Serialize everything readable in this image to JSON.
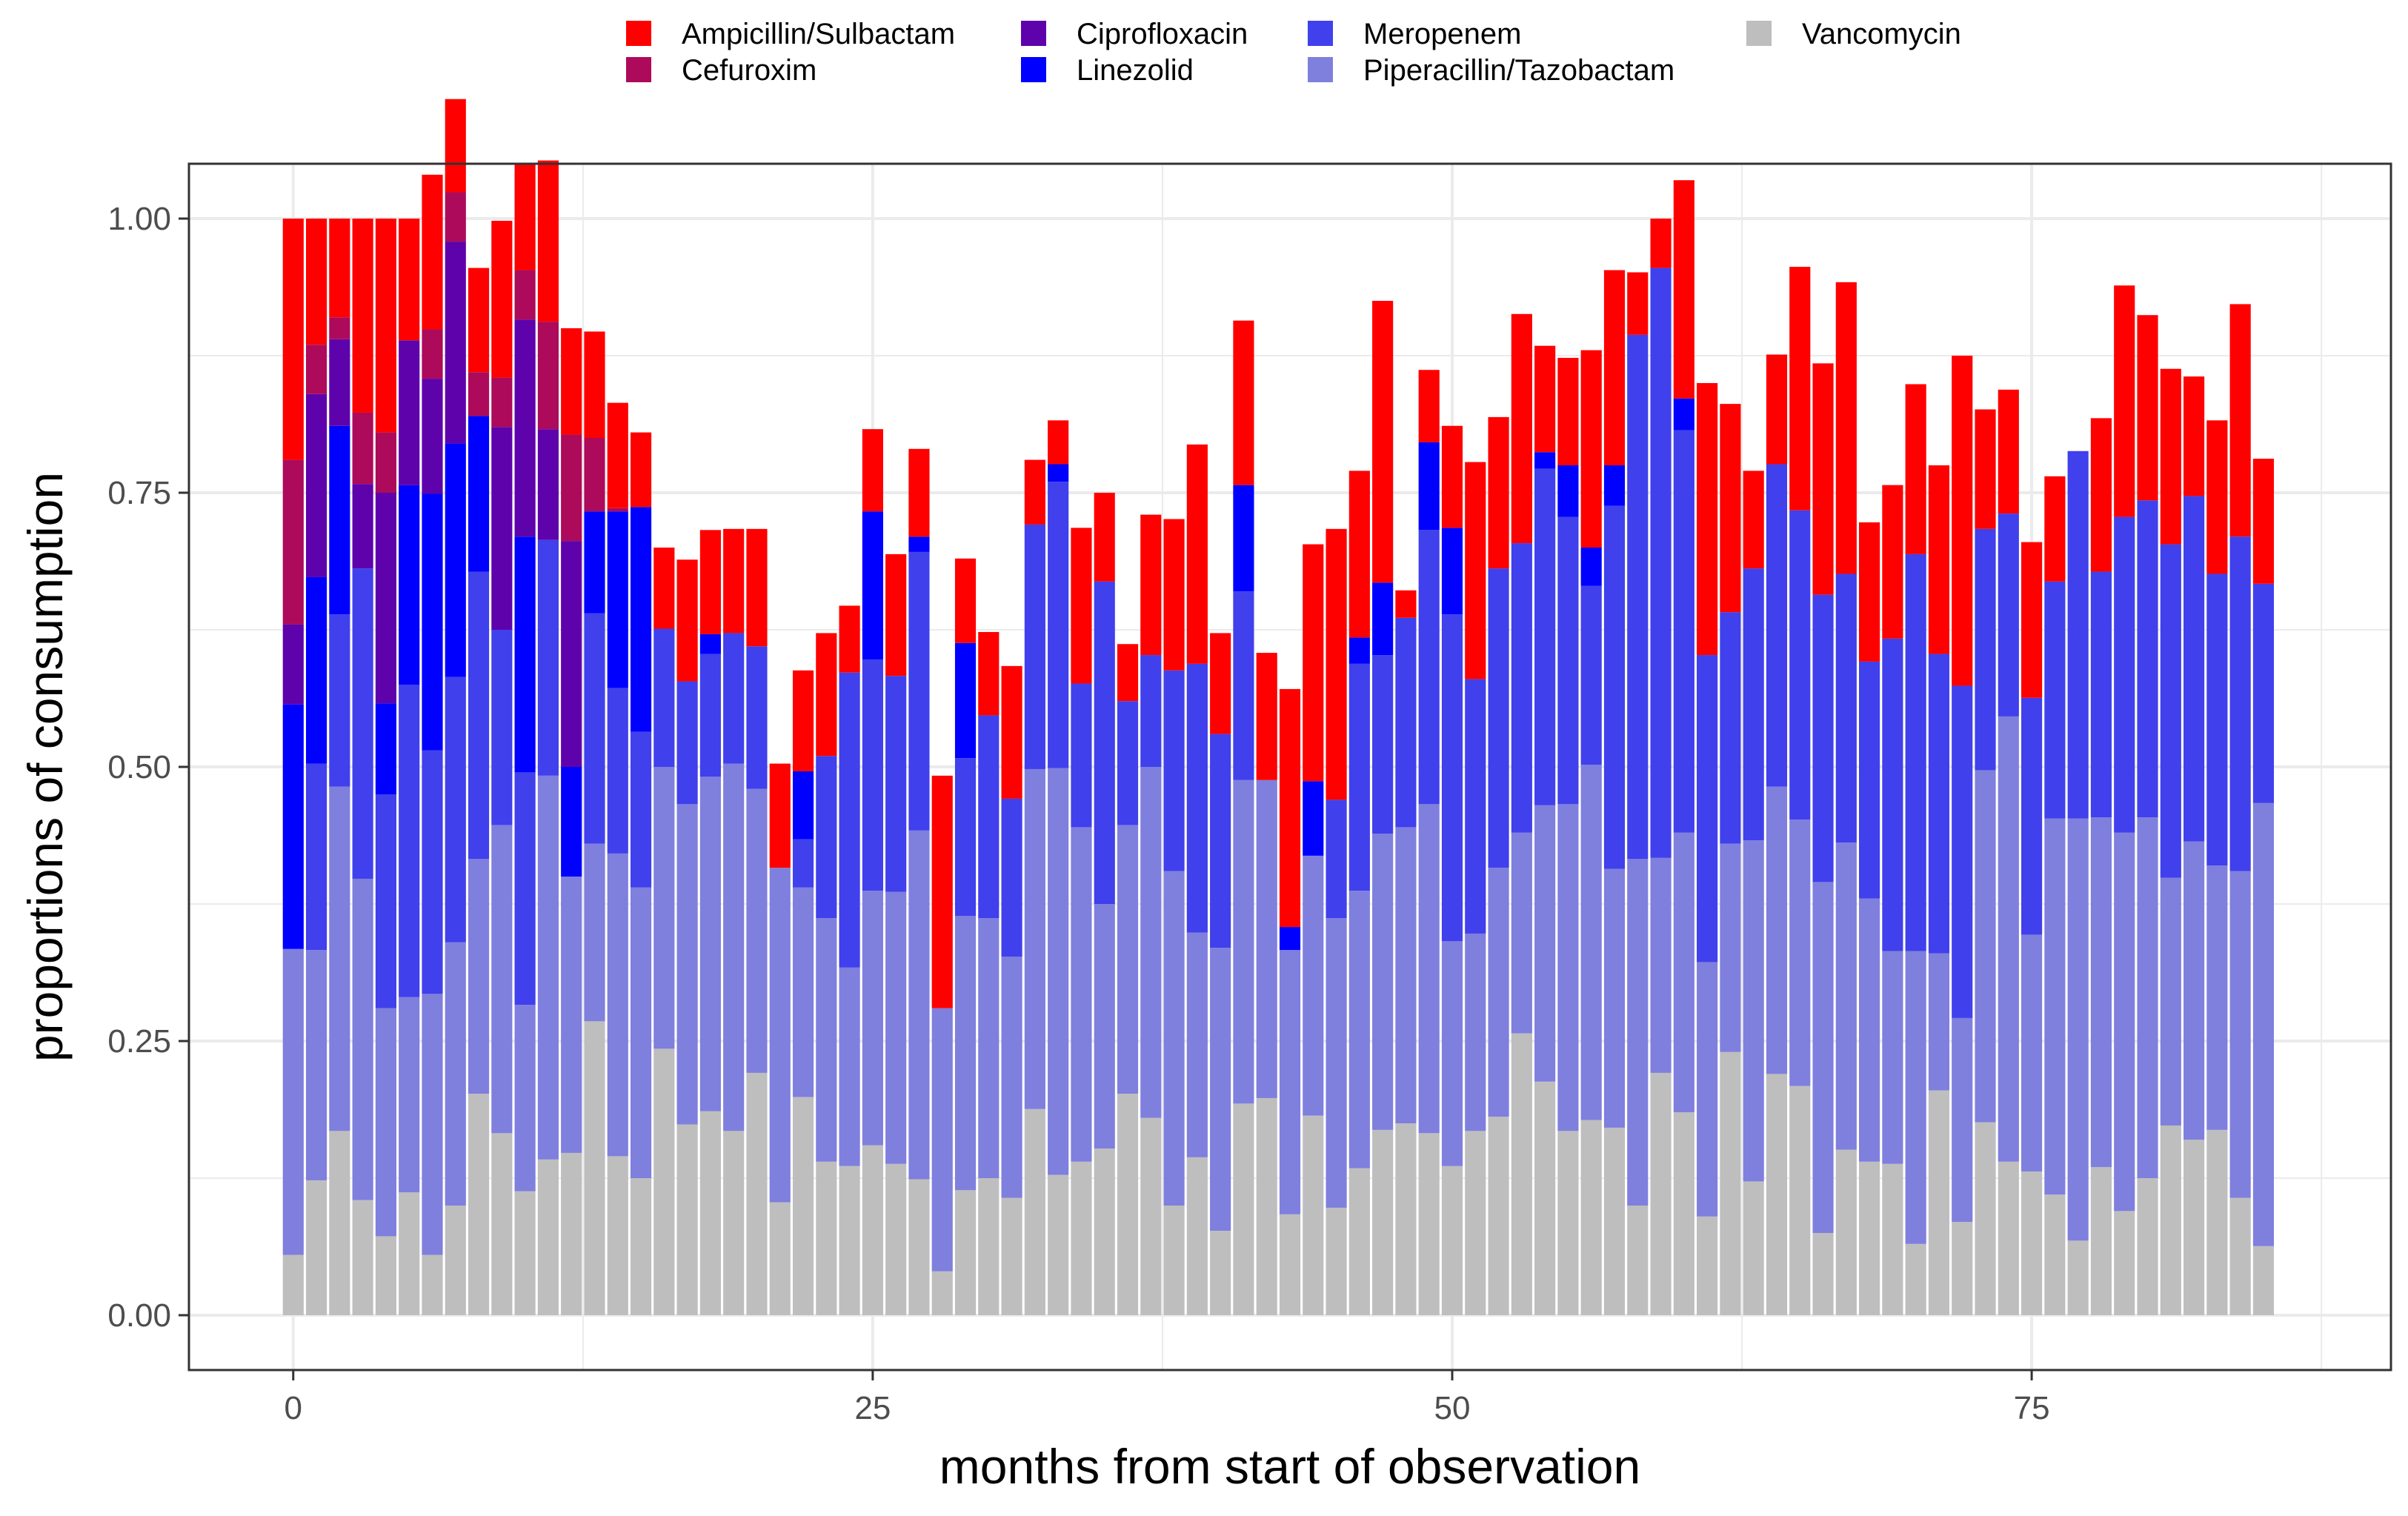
{
  "chart_data": {
    "type": "bar",
    "stacked": true,
    "xlabel": "months from start of observation",
    "ylabel": "proportions of consumption",
    "xlim": [
      -4.5,
      90.5
    ],
    "ylim": [
      -0.05,
      1.05
    ],
    "x_ticks": [
      0,
      25,
      50,
      75
    ],
    "y_ticks": [
      0,
      0.25,
      0.5,
      0.75,
      1.0
    ],
    "y_tick_labels": [
      "0.00",
      "0.25",
      "0.50",
      "0.75",
      "1.00"
    ],
    "grid": true,
    "legend_position": "top",
    "x": [
      0,
      1,
      2,
      3,
      4,
      5,
      6,
      7,
      8,
      9,
      10,
      11,
      12,
      13,
      14,
      15,
      16,
      17,
      18,
      19,
      20,
      21,
      22,
      23,
      24,
      25,
      26,
      27,
      28,
      29,
      30,
      31,
      32,
      33,
      34,
      35,
      36,
      37,
      38,
      39,
      40,
      41,
      42,
      43,
      44,
      45,
      46,
      47,
      48,
      49,
      50,
      51,
      52,
      53,
      54,
      55,
      56,
      57,
      58,
      59,
      60,
      61,
      62,
      63,
      64,
      65,
      66,
      67,
      68,
      69,
      70,
      71,
      72,
      73,
      74,
      75,
      76,
      77,
      78,
      79,
      80,
      81,
      82,
      83,
      84,
      85
    ],
    "series": [
      {
        "name": "Vancomycin",
        "color": "#BEBEBE",
        "values": [
          0.055,
          0.123,
          0.168,
          0.105,
          0.072,
          0.112,
          0.055,
          0.1,
          0.202,
          0.166,
          0.113,
          0.142,
          0.148,
          0.268,
          0.145,
          0.125,
          0.243,
          0.174,
          0.186,
          0.168,
          0.221,
          0.103,
          0.199,
          0.14,
          0.136,
          0.155,
          0.138,
          0.124,
          0.04,
          0.114,
          0.125,
          0.107,
          0.188,
          0.128,
          0.14,
          0.152,
          0.202,
          0.18,
          0.1,
          0.144,
          0.077,
          0.193,
          0.198,
          0.092,
          0.182,
          0.098,
          0.134,
          0.169,
          0.175,
          0.166,
          0.136,
          0.168,
          0.181,
          0.257,
          0.213,
          0.168,
          0.178,
          0.171,
          0.1,
          0.221,
          0.185,
          0.09,
          0.24,
          0.122,
          0.22,
          0.209,
          0.075,
          0.151,
          0.14,
          0.138,
          0.065,
          0.205,
          0.085,
          0.176,
          0.14,
          0.131,
          0.11,
          0.068,
          0.135,
          0.095,
          0.125,
          0.173,
          0.16,
          0.169,
          0.107,
          0.063
        ]
      },
      {
        "name": "Piperacillin/Tazobactam",
        "color": "#7F7FDE",
        "values": [
          0.279,
          0.21,
          0.314,
          0.293,
          0.208,
          0.178,
          0.238,
          0.24,
          0.214,
          0.281,
          0.17,
          0.35,
          0.252,
          0.162,
          0.276,
          0.265,
          0.257,
          0.292,
          0.305,
          0.335,
          0.259,
          0.305,
          0.191,
          0.222,
          0.181,
          0.232,
          0.248,
          0.318,
          0.24,
          0.25,
          0.237,
          0.22,
          0.31,
          0.371,
          0.305,
          0.223,
          0.245,
          0.32,
          0.305,
          0.205,
          0.258,
          0.295,
          0.29,
          0.241,
          0.237,
          0.264,
          0.253,
          0.27,
          0.27,
          0.3,
          0.205,
          0.18,
          0.227,
          0.183,
          0.252,
          0.298,
          0.324,
          0.236,
          0.316,
          0.196,
          0.255,
          0.232,
          0.19,
          0.311,
          0.262,
          0.243,
          0.32,
          0.28,
          0.24,
          0.194,
          0.267,
          0.125,
          0.186,
          0.321,
          0.406,
          0.216,
          0.343,
          0.385,
          0.319,
          0.345,
          0.329,
          0.226,
          0.272,
          0.241,
          0.298,
          0.404
        ]
      },
      {
        "name": "Meropenem",
        "color": "#4040EC",
        "values": [
          0.0,
          0.17,
          0.157,
          0.283,
          0.195,
          0.285,
          0.222,
          0.242,
          0.262,
          0.178,
          0.212,
          0.215,
          0.0,
          0.21,
          0.151,
          0.142,
          0.126,
          0.112,
          0.112,
          0.119,
          0.13,
          0.0,
          0.044,
          0.148,
          0.269,
          0.211,
          0.197,
          0.254,
          0.0,
          0.144,
          0.185,
          0.144,
          0.223,
          0.261,
          0.131,
          0.294,
          0.113,
          0.102,
          0.183,
          0.245,
          0.195,
          0.172,
          0.0,
          0.0,
          0.0,
          0.108,
          0.207,
          0.163,
          0.191,
          0.25,
          0.298,
          0.232,
          0.273,
          0.264,
          0.307,
          0.262,
          0.163,
          0.331,
          0.478,
          0.538,
          0.367,
          0.28,
          0.211,
          0.248,
          0.294,
          0.282,
          0.262,
          0.245,
          0.216,
          0.285,
          0.362,
          0.273,
          0.303,
          0.22,
          0.185,
          0.216,
          0.216,
          0.335,
          0.224,
          0.288,
          0.289,
          0.304,
          0.315,
          0.266,
          0.305,
          0.2
        ]
      },
      {
        "name": "Linezolid",
        "color": "#0000FF",
        "values": [
          0.223,
          0.17,
          0.172,
          0.0,
          0.083,
          0.182,
          0.234,
          0.213,
          0.142,
          0.0,
          0.215,
          0.0,
          0.1,
          0.093,
          0.161,
          0.205,
          0.0,
          0.0,
          0.018,
          0.0,
          0.0,
          0.0,
          0.062,
          0.0,
          0.0,
          0.135,
          0.0,
          0.014,
          0.0,
          0.105,
          0.0,
          0.0,
          0.0,
          0.016,
          0.0,
          0.0,
          0.0,
          0.0,
          0.0,
          0.0,
          0.0,
          0.097,
          0.0,
          0.021,
          0.068,
          0.0,
          0.024,
          0.066,
          0.0,
          0.08,
          0.079,
          0.0,
          0.0,
          0.0,
          0.015,
          0.047,
          0.035,
          0.037,
          0.0,
          0.0,
          0.029,
          0.0,
          0.0,
          0.0,
          0.0,
          0.0,
          0.0,
          0.0,
          0.0,
          0.0,
          0.0,
          0.0,
          0.0,
          0.0,
          0.0,
          0.0,
          0.0,
          0.0,
          0.0,
          0.0,
          0.0,
          0.0,
          0.0,
          0.0,
          0.0,
          0.0
        ]
      },
      {
        "name": "Ciprofloxacin",
        "color": "#5E03AB",
        "values": [
          0.073,
          0.167,
          0.079,
          0.077,
          0.192,
          0.132,
          0.105,
          0.184,
          0.0,
          0.185,
          0.198,
          0.101,
          0.206,
          0.0,
          0.0,
          0.0,
          0.0,
          0.0,
          0.0,
          0.0,
          0.0,
          0.0,
          0.0,
          0.0,
          0.0,
          0.0,
          0.0,
          0.0,
          0.0,
          0.0,
          0.0,
          0.0,
          0.0,
          0.0,
          0.0,
          0.0,
          0.0,
          0.0,
          0.0,
          0.0,
          0.0,
          0.0,
          0.0,
          0.0,
          0.0,
          0.0,
          0.0,
          0.0,
          0.0,
          0.0,
          0.0,
          0.0,
          0.0,
          0.0,
          0.0,
          0.0,
          0.0,
          0.0,
          0.0,
          0.0,
          0.0,
          0.0,
          0.0,
          0.0,
          0.0,
          0.0,
          0.0,
          0.0,
          0.0,
          0.0,
          0.0,
          0.0,
          0.0,
          0.0,
          0.0,
          0.0,
          0.0,
          0.0,
          0.0,
          0.0,
          0.0,
          0.0,
          0.0,
          0.0,
          0.0,
          0.0
        ]
      },
      {
        "name": "Cefuroxim",
        "color": "#AD0A5B",
        "values": [
          0.15,
          0.045,
          0.02,
          0.065,
          0.055,
          0.0,
          0.045,
          0.045,
          0.04,
          0.045,
          0.045,
          0.098,
          0.097,
          0.067,
          0.003,
          0.0,
          0.0,
          0.0,
          0.0,
          0.0,
          0.0,
          0.0,
          0.0,
          0.0,
          0.0,
          0.0,
          0.0,
          0.0,
          0.0,
          0.0,
          0.0,
          0.0,
          0.0,
          0.0,
          0.0,
          0.0,
          0.0,
          0.0,
          0.0,
          0.0,
          0.0,
          0.0,
          0.0,
          0.0,
          0.0,
          0.0,
          0.0,
          0.0,
          0.0,
          0.0,
          0.0,
          0.0,
          0.0,
          0.0,
          0.0,
          0.0,
          0.0,
          0.0,
          0.0,
          0.0,
          0.0,
          0.0,
          0.0,
          0.0,
          0.0,
          0.0,
          0.0,
          0.0,
          0.0,
          0.0,
          0.0,
          0.0,
          0.0,
          0.0,
          0.0,
          0.0,
          0.0,
          0.0,
          0.0,
          0.0,
          0.0,
          0.0,
          0.0,
          0.0,
          0.0,
          0.0
        ]
      },
      {
        "name": "Ampicillin/Sulbactam",
        "color": "#FF0000",
        "values": [
          0.22,
          0.115,
          0.09,
          0.177,
          0.195,
          0.111,
          0.141,
          0.085,
          0.095,
          0.143,
          0.097,
          0.147,
          0.097,
          0.097,
          0.096,
          0.068,
          0.074,
          0.111,
          0.095,
          0.095,
          0.107,
          0.095,
          0.092,
          0.112,
          0.061,
          0.075,
          0.111,
          0.08,
          0.212,
          0.077,
          0.076,
          0.121,
          0.059,
          0.04,
          0.142,
          0.081,
          0.052,
          0.128,
          0.138,
          0.2,
          0.092,
          0.15,
          0.116,
          0.217,
          0.216,
          0.247,
          0.152,
          0.257,
          0.025,
          0.066,
          0.093,
          0.198,
          0.138,
          0.209,
          0.097,
          0.098,
          0.18,
          0.178,
          0.057,
          0.045,
          0.199,
          0.248,
          0.19,
          0.089,
          0.1,
          0.222,
          0.211,
          0.266,
          0.127,
          0.14,
          0.155,
          0.172,
          0.301,
          0.109,
          0.113,
          0.142,
          0.096,
          0.0,
          0.14,
          0.211,
          0.169,
          0.16,
          0.109,
          0.14,
          0.212,
          0.114
        ]
      }
    ],
    "legend": {
      "items": [
        "Ampicillin/Sulbactam",
        "Cefuroxim",
        "Ciprofloxacin",
        "Linezolid",
        "Meropenem",
        "Piperacillin/Tazobactam",
        "Vancomycin"
      ],
      "colors": [
        "#FF0000",
        "#AD0A5B",
        "#5E03AB",
        "#0000FF",
        "#4040EC",
        "#7F7FDE",
        "#BEBEBE"
      ]
    }
  }
}
